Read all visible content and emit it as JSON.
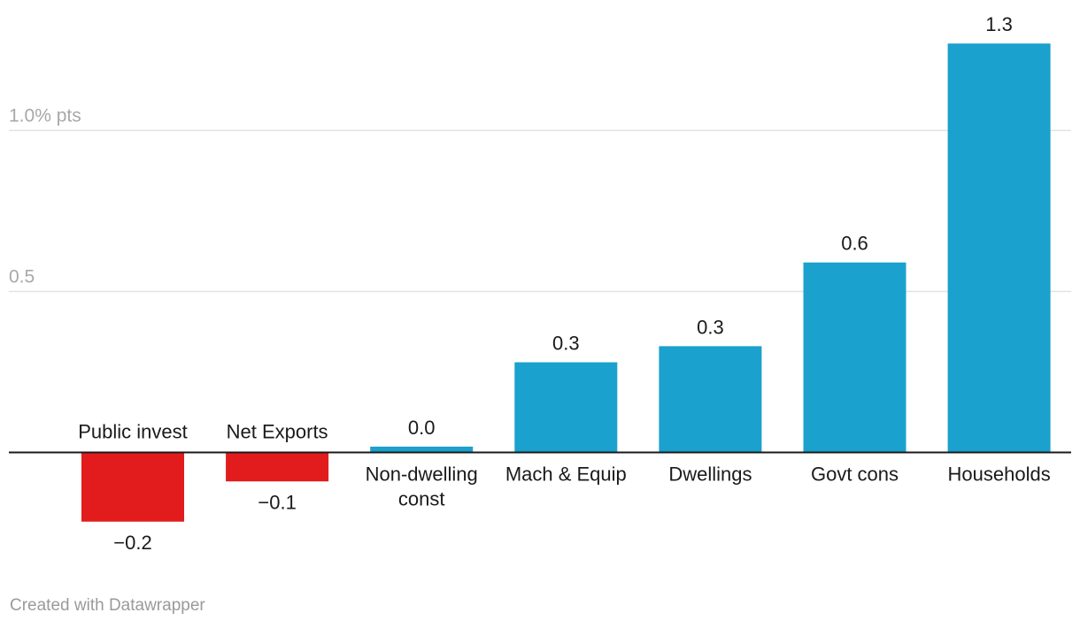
{
  "chart_data": {
    "type": "bar",
    "categories": [
      "Public invest",
      "Net Exports",
      "Non-dwelling const",
      "Mach & Equip",
      "Dwellings",
      "Govt cons",
      "Households"
    ],
    "category_lines": [
      [
        "Public invest"
      ],
      [
        "Net Exports"
      ],
      [
        "Non-dwelling",
        "const"
      ],
      [
        "Mach & Equip"
      ],
      [
        "Dwellings"
      ],
      [
        "Govt cons"
      ],
      [
        "Households"
      ]
    ],
    "values": [
      -0.215,
      -0.09,
      0.018,
      0.28,
      0.33,
      0.59,
      1.27
    ],
    "value_labels": [
      "−0.2",
      "−0.1",
      "0.0",
      "0.3",
      "0.3",
      "0.6",
      "1.3"
    ],
    "ylim": [
      -0.3,
      1.4
    ],
    "y_ticks": [
      {
        "value": 0.5,
        "label": "0.5"
      },
      {
        "value": 1.0,
        "label": "1.0% pts"
      }
    ],
    "grid": true,
    "colors": {
      "positive": "#1aa1cd",
      "negative": "#e21c1c",
      "grid": "#e2e2e2",
      "axis": "#1a1a1a",
      "tick_text": "#a8a8a8",
      "label_text": "#1a1a1a"
    }
  },
  "footer": {
    "credit": "Created with Datawrapper"
  }
}
